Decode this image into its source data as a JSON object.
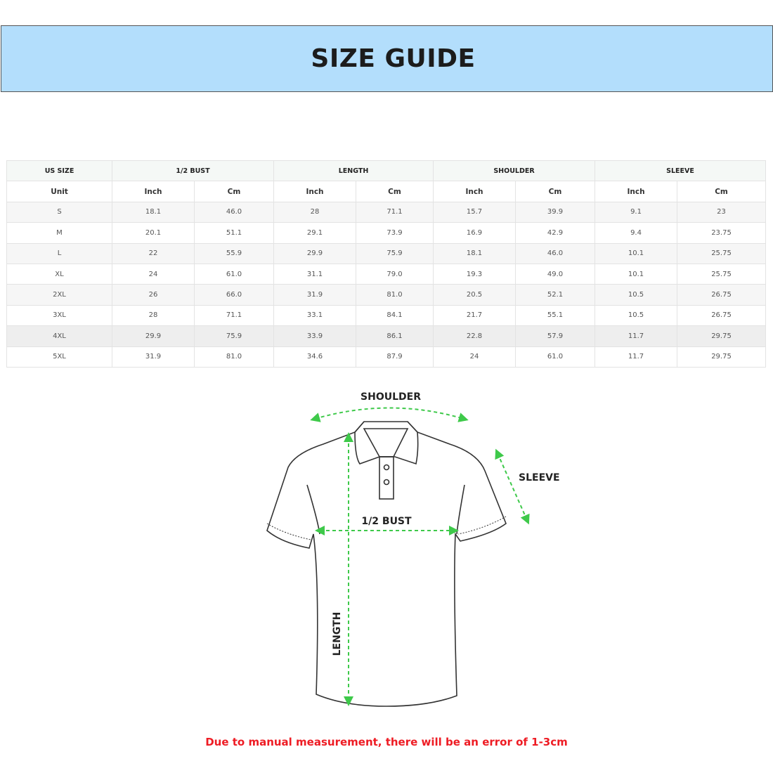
{
  "title": "SIZE GUIDE",
  "table": {
    "group_headers": [
      "US SIZE",
      "1/2 BUST",
      "LENGTH",
      "SHOULDER",
      "SLEEVE"
    ],
    "unit_row": [
      "Unit",
      "Inch",
      "Cm",
      "Inch",
      "Cm",
      "Inch",
      "Cm",
      "Inch",
      "Cm"
    ],
    "rows": [
      [
        "S",
        "18.1",
        "46.0",
        "28",
        "71.1",
        "15.7",
        "39.9",
        "9.1",
        "23"
      ],
      [
        "M",
        "20.1",
        "51.1",
        "29.1",
        "73.9",
        "16.9",
        "42.9",
        "9.4",
        "23.75"
      ],
      [
        "L",
        "22",
        "55.9",
        "29.9",
        "75.9",
        "18.1",
        "46.0",
        "10.1",
        "25.75"
      ],
      [
        "XL",
        "24",
        "61.0",
        "31.1",
        "79.0",
        "19.3",
        "49.0",
        "10.1",
        "25.75"
      ],
      [
        "2XL",
        "26",
        "66.0",
        "31.9",
        "81.0",
        "20.5",
        "52.1",
        "10.5",
        "26.75"
      ],
      [
        "3XL",
        "28",
        "71.1",
        "33.1",
        "84.1",
        "21.7",
        "55.1",
        "10.5",
        "26.75"
      ],
      [
        "4XL",
        "29.9",
        "75.9",
        "33.9",
        "86.1",
        "22.8",
        "57.9",
        "11.7",
        "29.75"
      ],
      [
        "5XL",
        "31.9",
        "81.0",
        "34.6",
        "87.9",
        "24",
        "61.0",
        "11.7",
        "29.75"
      ]
    ]
  },
  "diagram": {
    "labels": {
      "shoulder": "SHOULDER",
      "sleeve": "SLEEVE",
      "bust": "1/2 BUST",
      "length": "LENGTH"
    },
    "arrow_color": "#3ec94a",
    "icon": "polo-shirt"
  },
  "note": "Due to manual measurement, there will be an error of 1-3cm",
  "colors": {
    "banner": "#b3defc",
    "note": "#ee1c24"
  }
}
